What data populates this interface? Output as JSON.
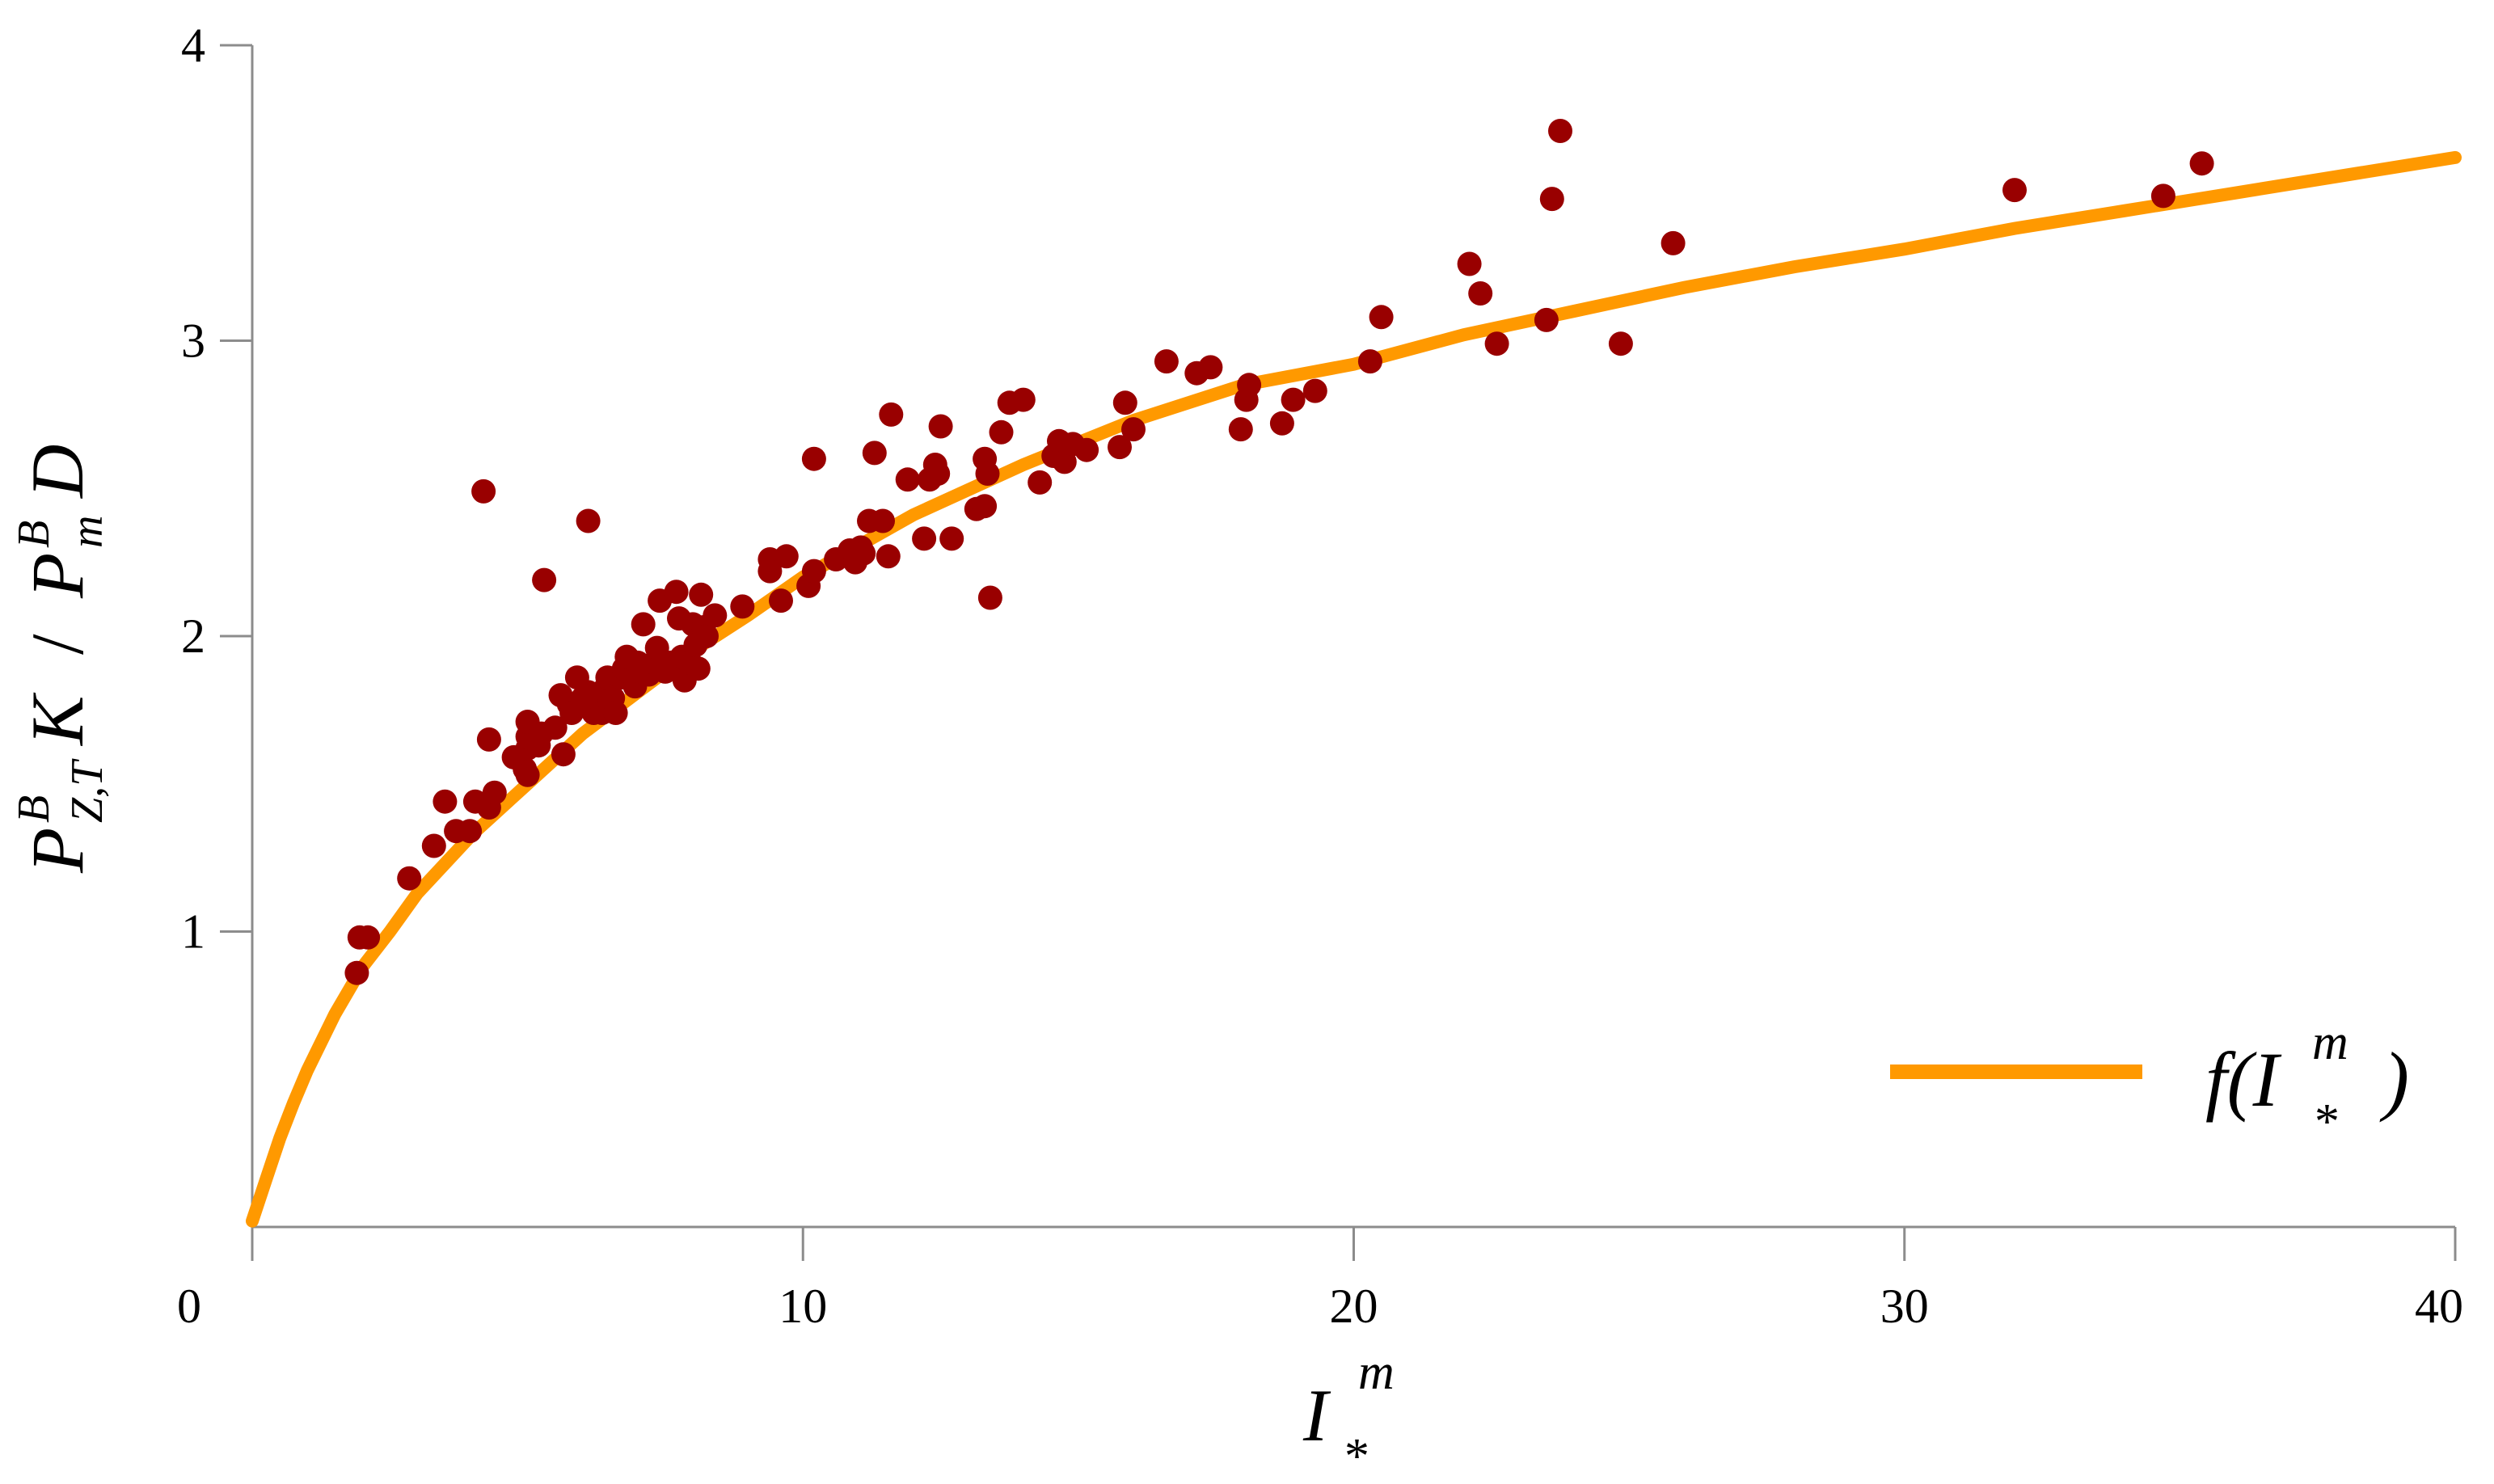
{
  "chart_data": {
    "type": "scatter",
    "title": "",
    "xlabel": {
      "base": "I",
      "sup": "m",
      "sub": "*"
    },
    "ylabel": {
      "numerator": {
        "base": "P",
        "sup": "B",
        "sub": "Z,T",
        "tail": "K"
      },
      "separator": "/",
      "denominator": {
        "base": "P",
        "sup": "B",
        "sub": "m",
        "tail": "D"
      }
    },
    "xlim": [
      0,
      40
    ],
    "ylim": [
      0,
      4
    ],
    "x_ticks": [
      {
        "value": 0,
        "label": "0"
      },
      {
        "value": 10,
        "label": "10"
      },
      {
        "value": 20,
        "label": "20"
      },
      {
        "value": 30,
        "label": "30"
      },
      {
        "value": 40,
        "label": "40"
      }
    ],
    "y_ticks": [
      {
        "value": 1,
        "label": "1"
      },
      {
        "value": 2,
        "label": "2"
      },
      {
        "value": 3,
        "label": "3"
      },
      {
        "value": 4,
        "label": "4"
      }
    ],
    "grid": false,
    "legend": {
      "placement": "bottom-right",
      "entries": [
        {
          "base": "f(I",
          "sup": "m",
          "sub": "*",
          "close": ")",
          "color": "#ff9900"
        }
      ]
    },
    "colors": {
      "points": "#990000",
      "fit": "#ff9900",
      "axis": "#8c8c8c"
    },
    "series": [
      {
        "kind": "scatter",
        "color": "#990000",
        "points": [
          [
            1.9,
            0.86
          ],
          [
            1.95,
            0.98
          ],
          [
            2.1,
            0.98
          ],
          [
            2.85,
            1.18
          ],
          [
            3.3,
            1.29
          ],
          [
            3.5,
            1.44
          ],
          [
            3.7,
            1.34
          ],
          [
            3.95,
            1.34
          ],
          [
            4.05,
            1.44
          ],
          [
            4.3,
            1.42
          ],
          [
            4.4,
            1.47
          ],
          [
            4.2,
            2.49
          ],
          [
            4.3,
            1.65
          ],
          [
            4.75,
            1.59
          ],
          [
            4.95,
            1.55
          ],
          [
            5.0,
            1.53
          ],
          [
            5.0,
            1.62
          ],
          [
            5.0,
            1.66
          ],
          [
            5.0,
            1.71
          ],
          [
            5.2,
            1.63
          ],
          [
            5.25,
            1.67
          ],
          [
            5.3,
            2.19
          ],
          [
            5.5,
            1.69
          ],
          [
            5.6,
            1.8
          ],
          [
            5.65,
            1.6
          ],
          [
            5.75,
            1.77
          ],
          [
            5.8,
            1.74
          ],
          [
            5.9,
            1.86
          ],
          [
            6.0,
            1.79
          ],
          [
            6.1,
            1.81
          ],
          [
            6.2,
            1.74
          ],
          [
            6.3,
            1.79
          ],
          [
            6.35,
            1.74
          ],
          [
            6.4,
            1.82
          ],
          [
            6.45,
            1.86
          ],
          [
            6.5,
            1.77
          ],
          [
            6.55,
            1.79
          ],
          [
            6.6,
            1.74
          ],
          [
            6.7,
            1.86
          ],
          [
            6.75,
            1.89
          ],
          [
            6.8,
            1.93
          ],
          [
            6.1,
            2.39
          ],
          [
            6.95,
            1.83
          ],
          [
            7.0,
            1.91
          ],
          [
            7.05,
            1.88
          ],
          [
            7.1,
            2.04
          ],
          [
            7.2,
            1.87
          ],
          [
            7.3,
            1.91
          ],
          [
            7.35,
            1.96
          ],
          [
            7.4,
            2.12
          ],
          [
            7.5,
            1.88
          ],
          [
            7.6,
            1.91
          ],
          [
            7.65,
            1.89
          ],
          [
            7.7,
            2.15
          ],
          [
            7.75,
            2.06
          ],
          [
            7.8,
            1.93
          ],
          [
            7.85,
            1.85
          ],
          [
            7.95,
            1.91
          ],
          [
            8.0,
            2.04
          ],
          [
            8.05,
            1.97
          ],
          [
            8.1,
            1.89
          ],
          [
            8.15,
            2.14
          ],
          [
            8.2,
            2.03
          ],
          [
            8.25,
            2.0
          ],
          [
            8.4,
            2.07
          ],
          [
            8.9,
            2.1
          ],
          [
            9.4,
            2.22
          ],
          [
            9.4,
            2.26
          ],
          [
            9.6,
            2.12
          ],
          [
            9.7,
            2.27
          ],
          [
            10.1,
            2.17
          ],
          [
            10.2,
            2.22
          ],
          [
            10.2,
            2.6
          ],
          [
            10.6,
            2.26
          ],
          [
            10.85,
            2.29
          ],
          [
            10.95,
            2.25
          ],
          [
            11.05,
            2.3
          ],
          [
            11.1,
            2.28
          ],
          [
            11.2,
            2.39
          ],
          [
            11.3,
            2.62
          ],
          [
            11.45,
            2.39
          ],
          [
            11.55,
            2.27
          ],
          [
            11.6,
            2.75
          ],
          [
            11.9,
            2.53
          ],
          [
            12.2,
            2.33
          ],
          [
            12.3,
            2.53
          ],
          [
            12.4,
            2.58
          ],
          [
            12.45,
            2.55
          ],
          [
            12.5,
            2.71
          ],
          [
            12.7,
            2.33
          ],
          [
            13.15,
            2.43
          ],
          [
            13.3,
            2.44
          ],
          [
            13.3,
            2.6
          ],
          [
            13.35,
            2.55
          ],
          [
            13.4,
            2.13
          ],
          [
            13.6,
            2.69
          ],
          [
            13.75,
            2.79
          ],
          [
            14.0,
            2.8
          ],
          [
            14.3,
            2.52
          ],
          [
            14.55,
            2.61
          ],
          [
            14.65,
            2.66
          ],
          [
            14.75,
            2.59
          ],
          [
            14.9,
            2.65
          ],
          [
            15.15,
            2.63
          ],
          [
            15.75,
            2.64
          ],
          [
            15.85,
            2.79
          ],
          [
            16.0,
            2.7
          ],
          [
            16.6,
            2.93
          ],
          [
            17.15,
            2.89
          ],
          [
            17.4,
            2.91
          ],
          [
            17.95,
            2.7
          ],
          [
            18.05,
            2.8
          ],
          [
            18.1,
            2.85
          ],
          [
            18.7,
            2.72
          ],
          [
            18.9,
            2.8
          ],
          [
            19.3,
            2.83
          ],
          [
            20.3,
            2.93
          ],
          [
            20.5,
            3.08
          ],
          [
            22.1,
            3.26
          ],
          [
            22.3,
            3.16
          ],
          [
            22.6,
            2.99
          ],
          [
            23.5,
            3.07
          ],
          [
            23.6,
            3.48
          ],
          [
            23.75,
            3.71
          ],
          [
            24.85,
            2.99
          ],
          [
            25.8,
            3.33
          ],
          [
            32.0,
            3.51
          ],
          [
            34.7,
            3.49
          ],
          [
            35.4,
            3.6
          ]
        ]
      },
      {
        "kind": "line",
        "color": "#ff9900",
        "points": [
          [
            0.0,
            0.02
          ],
          [
            0.25,
            0.16
          ],
          [
            0.5,
            0.3
          ],
          [
            0.75,
            0.42
          ],
          [
            1.0,
            0.53
          ],
          [
            1.5,
            0.72
          ],
          [
            2.0,
            0.88
          ],
          [
            2.5,
            1.0
          ],
          [
            3.0,
            1.13
          ],
          [
            4.0,
            1.33
          ],
          [
            5.0,
            1.5
          ],
          [
            6.0,
            1.67
          ],
          [
            7.0,
            1.81
          ],
          [
            8.0,
            1.95
          ],
          [
            9.0,
            2.07
          ],
          [
            10.0,
            2.2
          ],
          [
            12.0,
            2.41
          ],
          [
            14.0,
            2.58
          ],
          [
            16.0,
            2.73
          ],
          [
            18.0,
            2.85
          ],
          [
            20.0,
            2.92
          ],
          [
            22.0,
            3.02
          ],
          [
            24.0,
            3.1
          ],
          [
            26.0,
            3.18
          ],
          [
            28.0,
            3.25
          ],
          [
            30.0,
            3.31
          ],
          [
            32.0,
            3.38
          ],
          [
            34.0,
            3.44
          ],
          [
            36.0,
            3.5
          ],
          [
            38.0,
            3.56
          ],
          [
            40.0,
            3.62
          ]
        ]
      }
    ]
  }
}
